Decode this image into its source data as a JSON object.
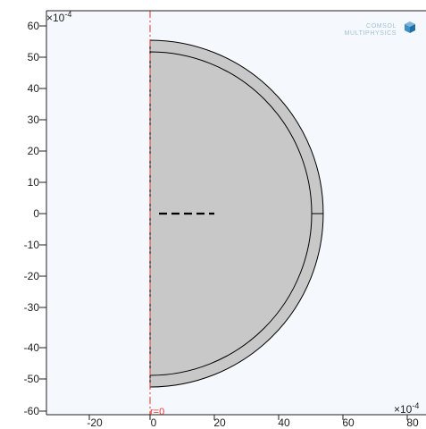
{
  "viewport": {
    "x_multiplier": "×10",
    "x_exponent": "-4",
    "y_multiplier": "×10",
    "y_exponent": "-4",
    "x_ticks": [
      "-20",
      "0",
      "20",
      "40",
      "60",
      "80"
    ],
    "y_ticks": [
      "60",
      "50",
      "40",
      "30",
      "20",
      "10",
      "0",
      "-10",
      "-20",
      "-30",
      "-40",
      "-50",
      "-60"
    ],
    "axis_marker": "r=0"
  },
  "logo": {
    "line1": "COMSOL",
    "line2": "MULTIPHYSICS"
  },
  "colors": {
    "plot_background": "#f5f9fd",
    "domain_fill": "#c8c8c8",
    "domain_edge": "#000000",
    "symmetry_axis": "#e53935",
    "logo_accent": "#3d8fc4"
  }
}
